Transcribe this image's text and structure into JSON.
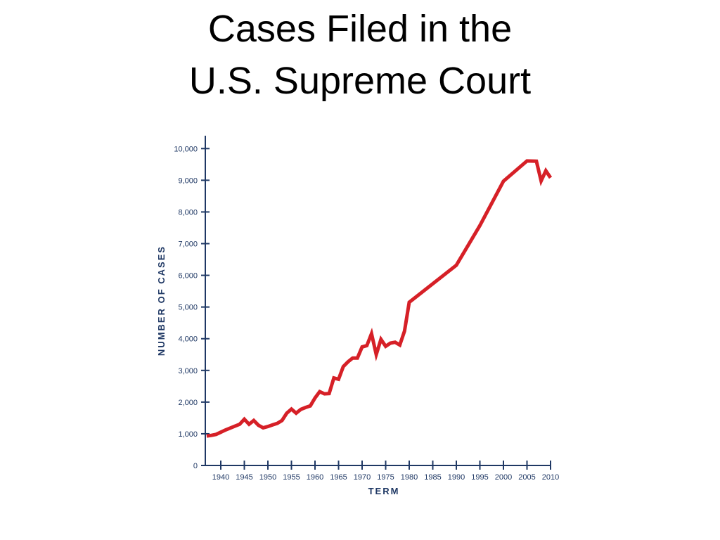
{
  "slide": {
    "title_line1": "Cases Filed in the",
    "title_line2": "U.S. Supreme Court"
  },
  "chart_data": {
    "type": "line",
    "xlabel": "TERM",
    "ylabel": "NUMBER OF CASES",
    "xlim": [
      1936,
      2010.5
    ],
    "ylim": [
      0,
      10000
    ],
    "x_ticks": [
      1940,
      1945,
      1950,
      1955,
      1960,
      1965,
      1970,
      1975,
      1980,
      1985,
      1990,
      1995,
      2000,
      2005,
      2010
    ],
    "y_ticks": [
      0,
      1000,
      2000,
      3000,
      4000,
      5000,
      6000,
      7000,
      8000,
      9000,
      10000
    ],
    "y_tick_labels": [
      "0",
      "1,000",
      "2,000",
      "3,000",
      "4,000",
      "5,000",
      "6,000",
      "7,000",
      "8,000",
      "9,000",
      "10,000"
    ],
    "grid": false,
    "axis_color": "#1f3864",
    "series": [
      {
        "color": "#d62027",
        "x": [
          1937,
          1938,
          1939,
          1940,
          1941,
          1942,
          1943,
          1944,
          1945,
          1946,
          1947,
          1948,
          1949,
          1950,
          1951,
          1952,
          1953,
          1954,
          1955,
          1956,
          1957,
          1958,
          1959,
          1960,
          1961,
          1962,
          1963,
          1964,
          1965,
          1966,
          1967,
          1968,
          1969,
          1970,
          1971,
          1972,
          1973,
          1974,
          1975,
          1976,
          1977,
          1978,
          1979,
          1980,
          1990,
          1995,
          2000,
          2005,
          2007,
          2008,
          2009,
          2010
        ],
        "y": [
          930,
          950,
          980,
          1050,
          1120,
          1180,
          1240,
          1300,
          1460,
          1300,
          1420,
          1270,
          1190,
          1230,
          1280,
          1330,
          1420,
          1650,
          1780,
          1650,
          1770,
          1830,
          1880,
          2130,
          2330,
          2260,
          2270,
          2760,
          2720,
          3120,
          3270,
          3390,
          3390,
          3740,
          3780,
          4160,
          3500,
          3980,
          3760,
          3860,
          3890,
          3800,
          4240,
          5150,
          6320,
          7570,
          8970,
          9610,
          9600,
          8980,
          9300,
          9080
        ]
      }
    ]
  }
}
